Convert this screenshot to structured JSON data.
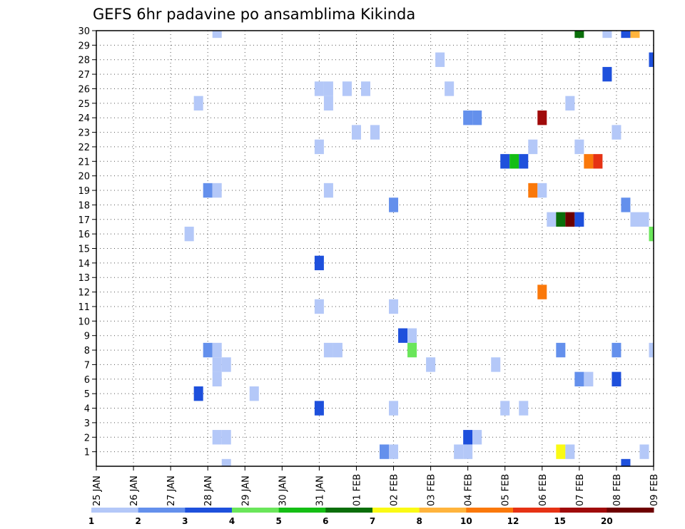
{
  "chart_data": {
    "type": "heatmap",
    "title": "GEFS 6hr padavine po ansamblima Kikinda",
    "xlabel": "",
    "ylabel": "",
    "grid": true,
    "x_ticks": [
      "25 JAN",
      "26 JAN",
      "27 JAN",
      "28 JAN",
      "29 JAN",
      "30 JAN",
      "31 JAN",
      "01 FEB",
      "02 FEB",
      "03 FEB",
      "04 FEB",
      "05 FEB",
      "06 FEB",
      "07 FEB",
      "08 FEB",
      "09 FEB"
    ],
    "y_ticks": [
      "1",
      "2",
      "3",
      "4",
      "5",
      "6",
      "7",
      "8",
      "9",
      "10",
      "11",
      "12",
      "13",
      "14",
      "15",
      "16",
      "17",
      "18",
      "19",
      "20",
      "21",
      "22",
      "23",
      "24",
      "25",
      "26",
      "27",
      "28",
      "29",
      "30"
    ],
    "xlim_days": [
      0,
      15
    ],
    "ylim": [
      0,
      30
    ],
    "levels": [
      "1",
      "2",
      "3",
      "4",
      "5",
      "6",
      "7",
      "8",
      "10",
      "12",
      "15",
      "20"
    ],
    "level_colors": [
      "#b4c8f8",
      "#6490ec",
      "#1e50dc",
      "#6ae65a",
      "#14be14",
      "#0a6e0a",
      "#fafa14",
      "#ffb43c",
      "#fa780a",
      "#e63214",
      "#a00a0a",
      "#6e0000"
    ],
    "cells": [
      {
        "t": 3.25,
        "m": 30,
        "l": 0
      },
      {
        "t": 13.0,
        "m": 30,
        "l": 5
      },
      {
        "t": 13.75,
        "m": 30,
        "l": 0
      },
      {
        "t": 14.25,
        "m": 30,
        "l": 2
      },
      {
        "t": 14.5,
        "m": 30,
        "l": 7
      },
      {
        "t": 9.25,
        "m": 28,
        "l": 0
      },
      {
        "t": 15.0,
        "m": 28,
        "l": 2
      },
      {
        "t": 13.75,
        "m": 27,
        "l": 2
      },
      {
        "t": 6.0,
        "m": 26,
        "l": 0
      },
      {
        "t": 6.25,
        "m": 26,
        "l": 0
      },
      {
        "t": 6.75,
        "m": 26,
        "l": 0
      },
      {
        "t": 7.25,
        "m": 26,
        "l": 0
      },
      {
        "t": 9.5,
        "m": 26,
        "l": 0
      },
      {
        "t": 2.75,
        "m": 25,
        "l": 0
      },
      {
        "t": 6.25,
        "m": 25,
        "l": 0
      },
      {
        "t": 12.75,
        "m": 25,
        "l": 0
      },
      {
        "t": 10.0,
        "m": 24,
        "l": 1
      },
      {
        "t": 10.25,
        "m": 24,
        "l": 1
      },
      {
        "t": 12.0,
        "m": 24,
        "l": 10
      },
      {
        "t": 7.0,
        "m": 23,
        "l": 0
      },
      {
        "t": 7.5,
        "m": 23,
        "l": 0
      },
      {
        "t": 14.0,
        "m": 23,
        "l": 0
      },
      {
        "t": 6.0,
        "m": 22,
        "l": 0
      },
      {
        "t": 11.75,
        "m": 22,
        "l": 0
      },
      {
        "t": 13.0,
        "m": 22,
        "l": 0
      },
      {
        "t": 11.0,
        "m": 21,
        "l": 2
      },
      {
        "t": 11.25,
        "m": 21,
        "l": 4
      },
      {
        "t": 11.5,
        "m": 21,
        "l": 2
      },
      {
        "t": 13.25,
        "m": 21,
        "l": 8
      },
      {
        "t": 13.5,
        "m": 21,
        "l": 9
      },
      {
        "t": 3.0,
        "m": 19,
        "l": 1
      },
      {
        "t": 3.25,
        "m": 19,
        "l": 0
      },
      {
        "t": 6.25,
        "m": 19,
        "l": 0
      },
      {
        "t": 11.75,
        "m": 19,
        "l": 8
      },
      {
        "t": 12.0,
        "m": 19,
        "l": 0
      },
      {
        "t": 8.0,
        "m": 18,
        "l": 1
      },
      {
        "t": 14.25,
        "m": 18,
        "l": 1
      },
      {
        "t": 12.25,
        "m": 17,
        "l": 0
      },
      {
        "t": 12.5,
        "m": 17,
        "l": 5
      },
      {
        "t": 12.75,
        "m": 17,
        "l": 11
      },
      {
        "t": 13.0,
        "m": 17,
        "l": 2
      },
      {
        "t": 14.5,
        "m": 17,
        "l": 0
      },
      {
        "t": 14.75,
        "m": 17,
        "l": 0
      },
      {
        "t": 2.5,
        "m": 16,
        "l": 0
      },
      {
        "t": 15.0,
        "m": 16,
        "l": 3
      },
      {
        "t": 6.0,
        "m": 14,
        "l": 2
      },
      {
        "t": 12.0,
        "m": 12,
        "l": 8
      },
      {
        "t": 6.0,
        "m": 11,
        "l": 0
      },
      {
        "t": 8.0,
        "m": 11,
        "l": 0
      },
      {
        "t": 8.25,
        "m": 9,
        "l": 2
      },
      {
        "t": 8.5,
        "m": 9,
        "l": 0
      },
      {
        "t": 8.5,
        "m": 8,
        "l": 3
      },
      {
        "t": 3.0,
        "m": 8,
        "l": 1
      },
      {
        "t": 3.25,
        "m": 8,
        "l": 0
      },
      {
        "t": 6.25,
        "m": 8,
        "l": 0
      },
      {
        "t": 6.5,
        "m": 8,
        "l": 0
      },
      {
        "t": 12.5,
        "m": 8,
        "l": 1
      },
      {
        "t": 14.0,
        "m": 8,
        "l": 1
      },
      {
        "t": 15.0,
        "m": 8,
        "l": 0
      },
      {
        "t": 3.25,
        "m": 7,
        "l": 0
      },
      {
        "t": 3.5,
        "m": 7,
        "l": 0
      },
      {
        "t": 9.0,
        "m": 7,
        "l": 0
      },
      {
        "t": 10.75,
        "m": 7,
        "l": 0
      },
      {
        "t": 3.25,
        "m": 6,
        "l": 0
      },
      {
        "t": 13.0,
        "m": 6,
        "l": 1
      },
      {
        "t": 13.25,
        "m": 6,
        "l": 0
      },
      {
        "t": 14.0,
        "m": 6,
        "l": 2
      },
      {
        "t": 2.75,
        "m": 5,
        "l": 2
      },
      {
        "t": 4.25,
        "m": 5,
        "l": 0
      },
      {
        "t": 6.0,
        "m": 4,
        "l": 2
      },
      {
        "t": 8.0,
        "m": 4,
        "l": 0
      },
      {
        "t": 11.0,
        "m": 4,
        "l": 0
      },
      {
        "t": 11.5,
        "m": 4,
        "l": 0
      },
      {
        "t": 3.25,
        "m": 2,
        "l": 0
      },
      {
        "t": 3.5,
        "m": 2,
        "l": 0
      },
      {
        "t": 10.0,
        "m": 2,
        "l": 2
      },
      {
        "t": 10.25,
        "m": 2,
        "l": 0
      },
      {
        "t": 7.75,
        "m": 1,
        "l": 1
      },
      {
        "t": 8.0,
        "m": 1,
        "l": 0
      },
      {
        "t": 9.75,
        "m": 1,
        "l": 0
      },
      {
        "t": 10.0,
        "m": 1,
        "l": 0
      },
      {
        "t": 12.5,
        "m": 1,
        "l": 6
      },
      {
        "t": 12.75,
        "m": 1,
        "l": 0
      },
      {
        "t": 14.75,
        "m": 1,
        "l": 0
      },
      {
        "t": 3.5,
        "m": 0,
        "l": 0
      },
      {
        "t": 14.25,
        "m": 0,
        "l": 2
      }
    ]
  }
}
